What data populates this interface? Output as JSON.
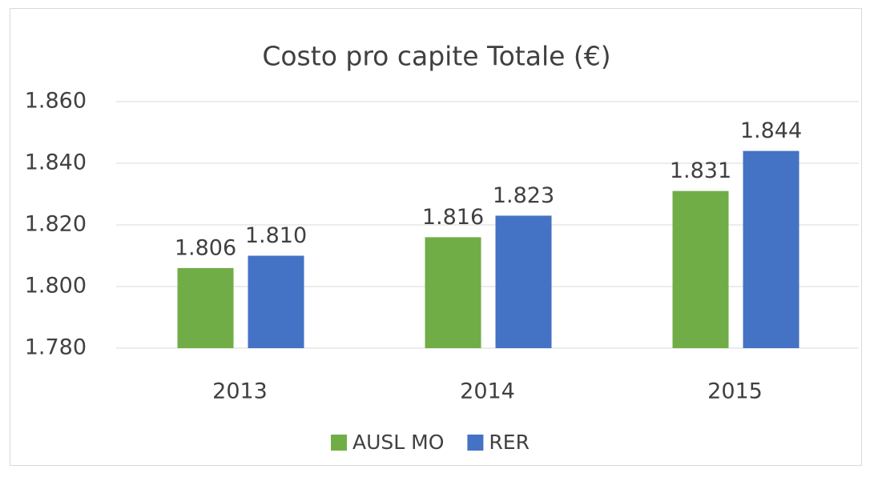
{
  "chart_data": {
    "type": "bar",
    "title": "Costo pro capite Totale (€)",
    "categories": [
      "2013",
      "2014",
      "2015"
    ],
    "series": [
      {
        "name": "AUSL MO",
        "color": "#70ad47",
        "values": [
          1806,
          1816,
          1831
        ],
        "value_labels": [
          "1.806",
          "1.816",
          "1.831"
        ]
      },
      {
        "name": "RER",
        "color": "#4472c4",
        "values": [
          1810,
          1823,
          1844
        ],
        "value_labels": [
          "1.810",
          "1.823",
          "1.844"
        ]
      }
    ],
    "ylim": [
      1780,
      1860
    ],
    "yticks": [
      {
        "value": 1780,
        "label": "1.780"
      },
      {
        "value": 1800,
        "label": "1.800"
      },
      {
        "value": 1820,
        "label": "1.820"
      },
      {
        "value": 1840,
        "label": "1.840"
      },
      {
        "value": 1860,
        "label": "1.860"
      }
    ],
    "grid": true,
    "legend": "bottom"
  }
}
